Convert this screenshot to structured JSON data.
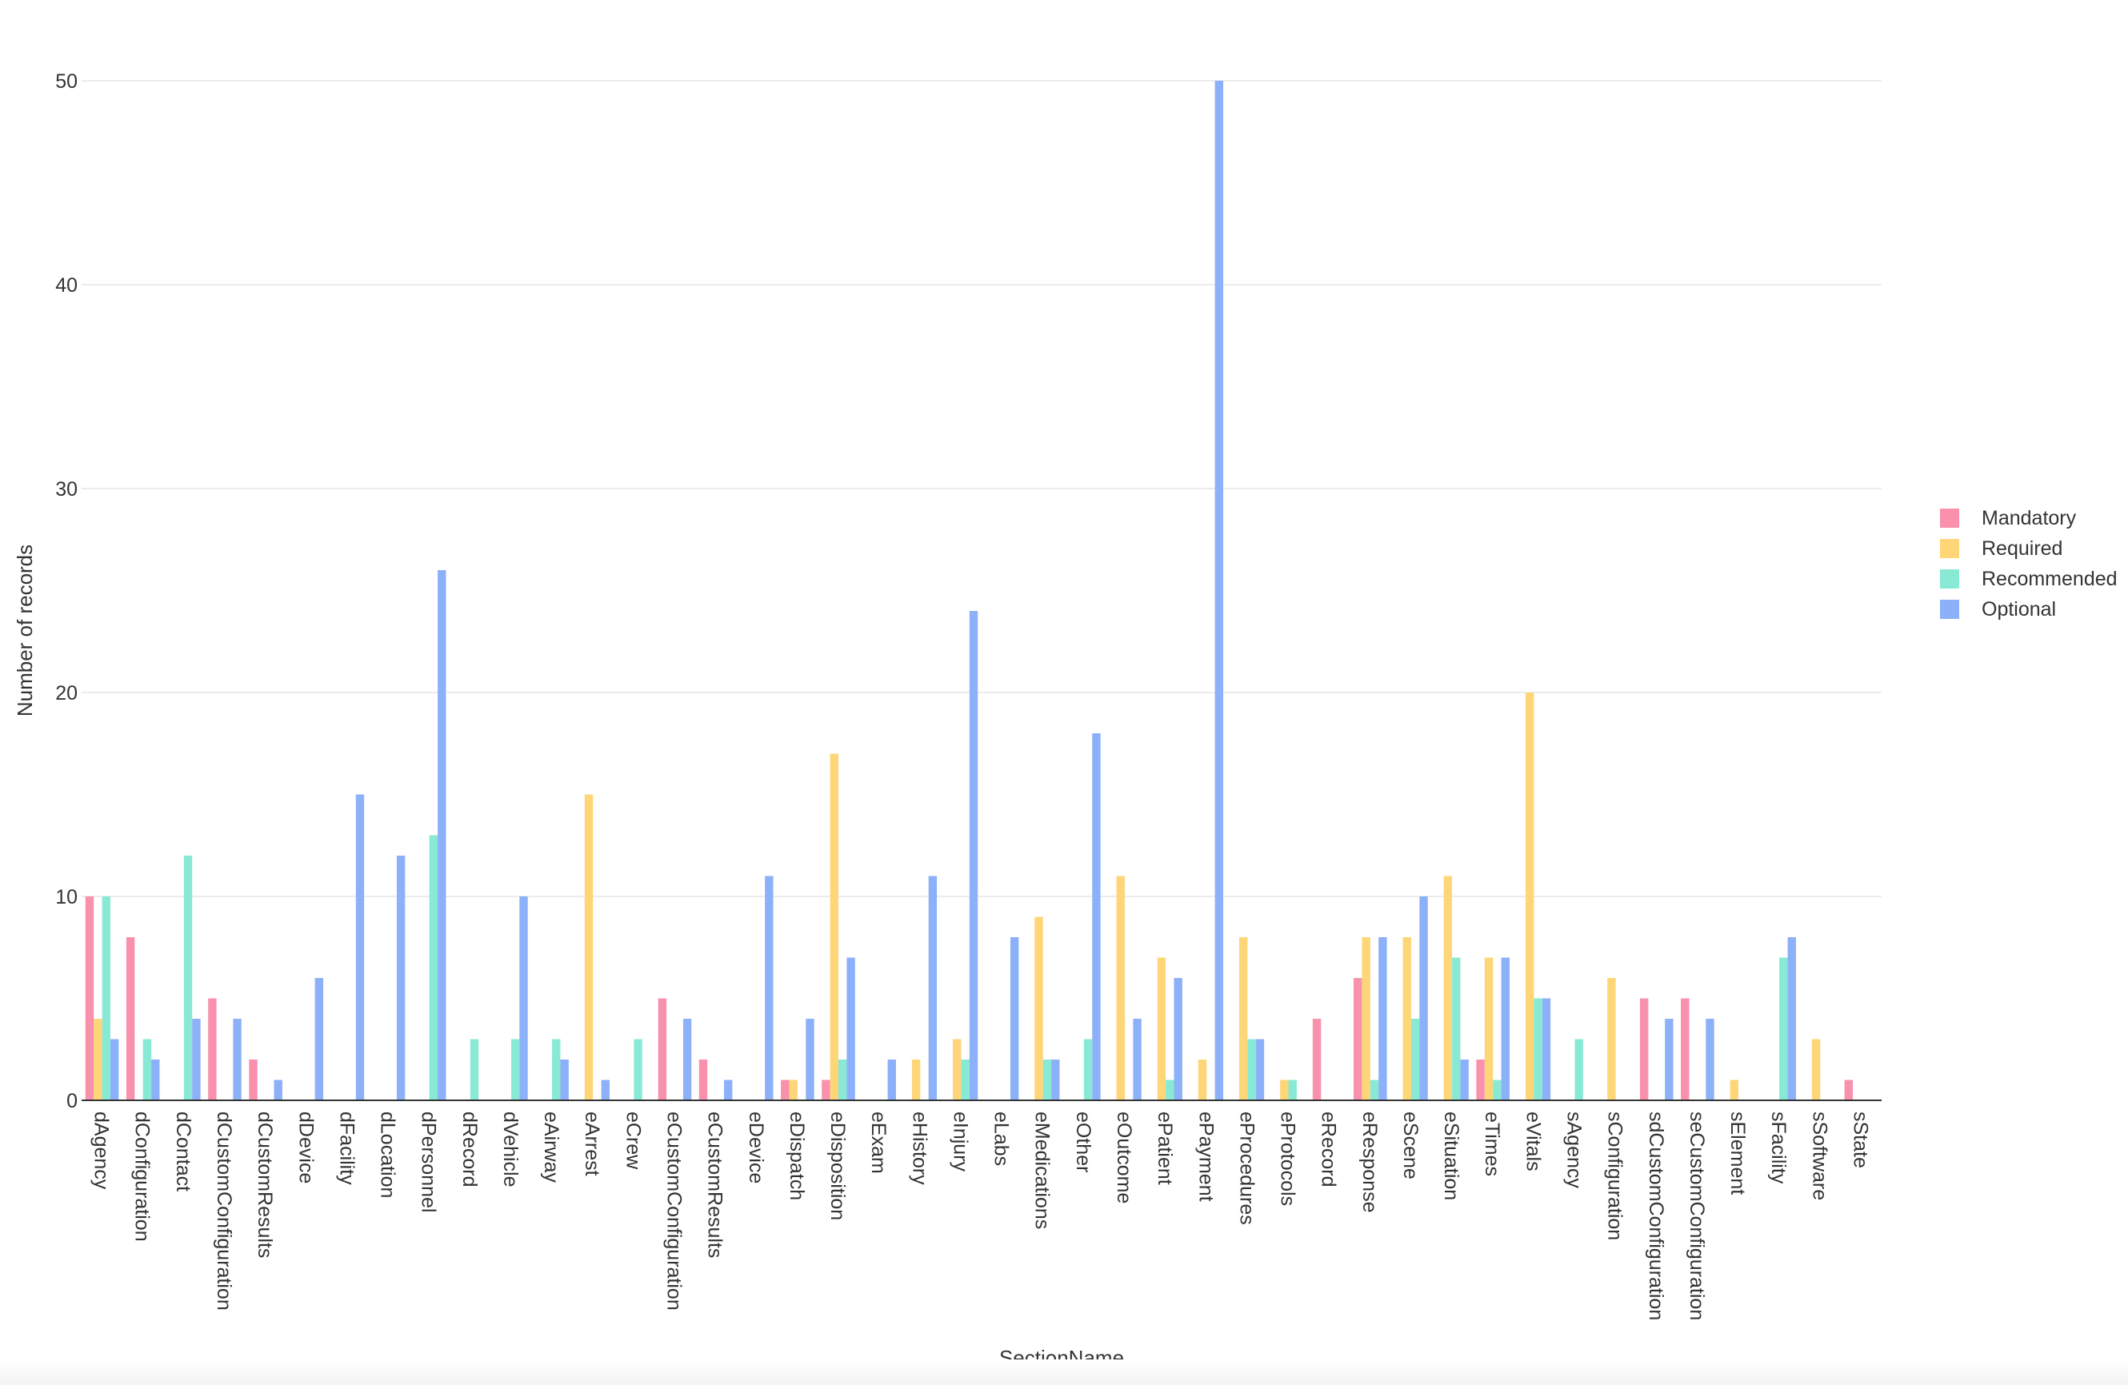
{
  "chart_data": {
    "type": "bar",
    "xlabel": "SectionName",
    "ylabel": "Number of records",
    "ylim": [
      0,
      50
    ],
    "yticks": [
      0,
      10,
      20,
      30,
      40,
      50
    ],
    "grid": true,
    "legend_position": "right",
    "categories": [
      "dAgency",
      "dConfiguration",
      "dContact",
      "dCustomConfiguration",
      "dCustomResults",
      "dDevice",
      "dFacility",
      "dLocation",
      "dPersonnel",
      "dRecord",
      "dVehicle",
      "eAirway",
      "eArrest",
      "eCrew",
      "eCustomConfiguration",
      "eCustomResults",
      "eDevice",
      "eDispatch",
      "eDisposition",
      "eExam",
      "eHistory",
      "eInjury",
      "eLabs",
      "eMedications",
      "eOther",
      "eOutcome",
      "ePatient",
      "ePayment",
      "eProcedures",
      "eProtocols",
      "eRecord",
      "eResponse",
      "eScene",
      "eSituation",
      "eTimes",
      "eVitals",
      "sAgency",
      "sConfiguration",
      "sdCustomConfiguration",
      "seCustomConfiguration",
      "sElement",
      "sFacility",
      "sSoftware",
      "sState"
    ],
    "series": [
      {
        "name": "Mandatory",
        "color": "#f990ac",
        "values": [
          10,
          8,
          0,
          5,
          2,
          0,
          0,
          0,
          0,
          0,
          0,
          0,
          0,
          0,
          5,
          2,
          0,
          1,
          1,
          0,
          0,
          0,
          0,
          0,
          0,
          0,
          0,
          0,
          0,
          0,
          4,
          6,
          0,
          0,
          2,
          0,
          0,
          0,
          5,
          5,
          0,
          0,
          0,
          1
        ]
      },
      {
        "name": "Required",
        "color": "#fed678",
        "values": [
          4,
          0,
          0,
          0,
          0,
          0,
          0,
          0,
          0,
          0,
          0,
          0,
          15,
          0,
          0,
          0,
          0,
          1,
          17,
          0,
          2,
          3,
          0,
          9,
          0,
          11,
          7,
          2,
          8,
          1,
          0,
          8,
          8,
          11,
          7,
          20,
          0,
          6,
          0,
          0,
          1,
          0,
          3,
          0
        ]
      },
      {
        "name": "Recommended",
        "color": "#88ead4",
        "values": [
          10,
          3,
          12,
          0,
          0,
          0,
          0,
          0,
          13,
          3,
          3,
          3,
          0,
          3,
          0,
          0,
          0,
          0,
          2,
          0,
          0,
          2,
          0,
          2,
          3,
          0,
          1,
          0,
          3,
          1,
          0,
          1,
          4,
          7,
          1,
          5,
          3,
          0,
          0,
          0,
          0,
          7,
          0,
          0
        ]
      },
      {
        "name": "Optional",
        "color": "#8cb1f9",
        "values": [
          3,
          2,
          4,
          4,
          1,
          6,
          15,
          12,
          26,
          0,
          10,
          2,
          1,
          0,
          4,
          1,
          11,
          4,
          7,
          2,
          11,
          24,
          8,
          2,
          18,
          4,
          6,
          50,
          3,
          0,
          0,
          8,
          10,
          2,
          7,
          5,
          0,
          0,
          4,
          4,
          0,
          8,
          0,
          0
        ]
      }
    ]
  }
}
